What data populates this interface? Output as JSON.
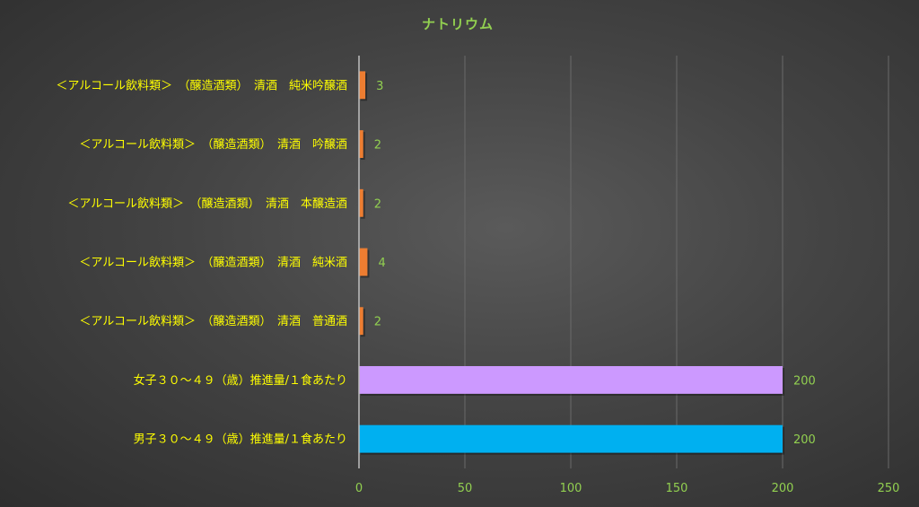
{
  "chart_data": {
    "type": "bar",
    "orientation": "horizontal",
    "title": "ナトリウム",
    "categories": [
      "＜アルコール飲料類＞　（醸造酒類）　清酒　純米吟醸酒",
      "＜アルコール飲料類＞　（醸造酒類）　清酒　吟醸酒",
      "＜アルコール飲料類＞　（醸造酒類）　清酒　本醸造酒",
      "＜アルコール飲料類＞　（醸造酒類）　清酒　純米酒",
      "＜アルコール飲料類＞　（醸造酒類）　清酒　普通酒",
      "女子３０～４９（歳）推進量/１食あたり",
      "男子３０～４９（歳）推進量/１食あたり"
    ],
    "values": [
      3,
      2,
      2,
      4,
      2,
      200,
      200
    ],
    "bar_colors": [
      "#ED7D31",
      "#ED7D31",
      "#ED7D31",
      "#ED7D31",
      "#ED7D31",
      "#CC99FF",
      "#00B0F0"
    ],
    "xlim": [
      0,
      250
    ],
    "xticks": [
      0,
      50,
      100,
      150,
      200,
      250
    ],
    "grid": true,
    "legend": "none",
    "colors": {
      "title": "#92D050",
      "category_labels": "#FFFF00",
      "tick_labels": "#92D050",
      "data_labels": "#92D050",
      "gridlines": "#6a6a6a",
      "axis_line": "#bfbfbf"
    }
  }
}
